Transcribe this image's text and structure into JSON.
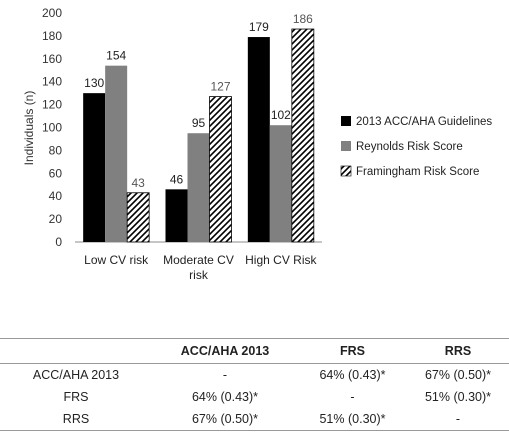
{
  "chart_data": {
    "type": "bar",
    "categories": [
      "Low CV risk",
      "Moderate CV risk",
      "High CV Risk"
    ],
    "series": [
      {
        "name": "2013 ACC/AHA Guidelines",
        "values": [
          130,
          46,
          179
        ],
        "color": "#000000",
        "pattern": "solid"
      },
      {
        "name": "Reynolds Risk Score",
        "values": [
          154,
          95,
          102
        ],
        "color": "#808080",
        "pattern": "solid"
      },
      {
        "name": "Framingham Risk Score",
        "values": [
          43,
          127,
          186
        ],
        "color": "#000000",
        "pattern": "diagonal-hatch"
      }
    ],
    "ylabel": "Individuals (n)",
    "xlabel": "",
    "title": "",
    "ylim": [
      0,
      200
    ],
    "yticks": [
      0,
      20,
      40,
      60,
      80,
      100,
      120,
      140,
      160,
      180,
      200
    ],
    "grid": false,
    "legend": "right"
  },
  "table": {
    "headers": [
      "",
      "ACC/AHA 2013",
      "FRS",
      "RRS"
    ],
    "rows": [
      [
        "ACC/AHA 2013",
        "-",
        "64% (0.43)*",
        "67% (0.50)*"
      ],
      [
        "FRS",
        "64% (0.43)*",
        "-",
        "51% (0.30)*"
      ],
      [
        "RRS",
        "67% (0.50)*",
        "51% (0.30)*",
        "-"
      ]
    ]
  }
}
